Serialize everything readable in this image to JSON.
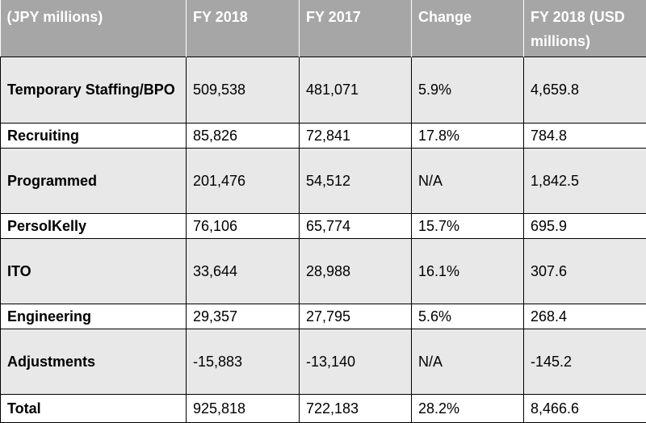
{
  "table": {
    "headers": [
      "(JPY millions)",
      "FY 2018",
      "FY 2017",
      "Change",
      "FY 2018 (USD millions)"
    ],
    "rows": [
      {
        "label": "Temporary Staffing/BPO",
        "fy2018": "509,538",
        "fy2017": "481,071",
        "change": "5.9%",
        "usd": "4,659.8",
        "shaded": true
      },
      {
        "label": "Recruiting",
        "fy2018": "85,826",
        "fy2017": "72,841",
        "change": "17.8%",
        "usd": "784.8",
        "shaded": false
      },
      {
        "label": "Programmed",
        "fy2018": "201,476",
        "fy2017": "54,512",
        "change": "N/A",
        "usd": "1,842.5",
        "shaded": true
      },
      {
        "label": "PersolKelly",
        "fy2018": "76,106",
        "fy2017": "65,774",
        "change": "15.7%",
        "usd": "695.9",
        "shaded": false
      },
      {
        "label": "ITO",
        "fy2018": "33,644",
        "fy2017": "28,988",
        "change": "16.1%",
        "usd": "307.6",
        "shaded": true
      },
      {
        "label": "Engineering",
        "fy2018": "29,357",
        "fy2017": "27,795",
        "change": "5.6%",
        "usd": "268.4",
        "shaded": false
      },
      {
        "label": "Adjustments",
        "fy2018": "-15,883",
        "fy2017": "-13,140",
        "change": "N/A",
        "usd": "-145.2",
        "shaded": true
      },
      {
        "label": "Total",
        "fy2018": "925,818",
        "fy2017": "722,183",
        "change": "28.2%",
        "usd": "8,466.6",
        "shaded": false
      }
    ]
  }
}
